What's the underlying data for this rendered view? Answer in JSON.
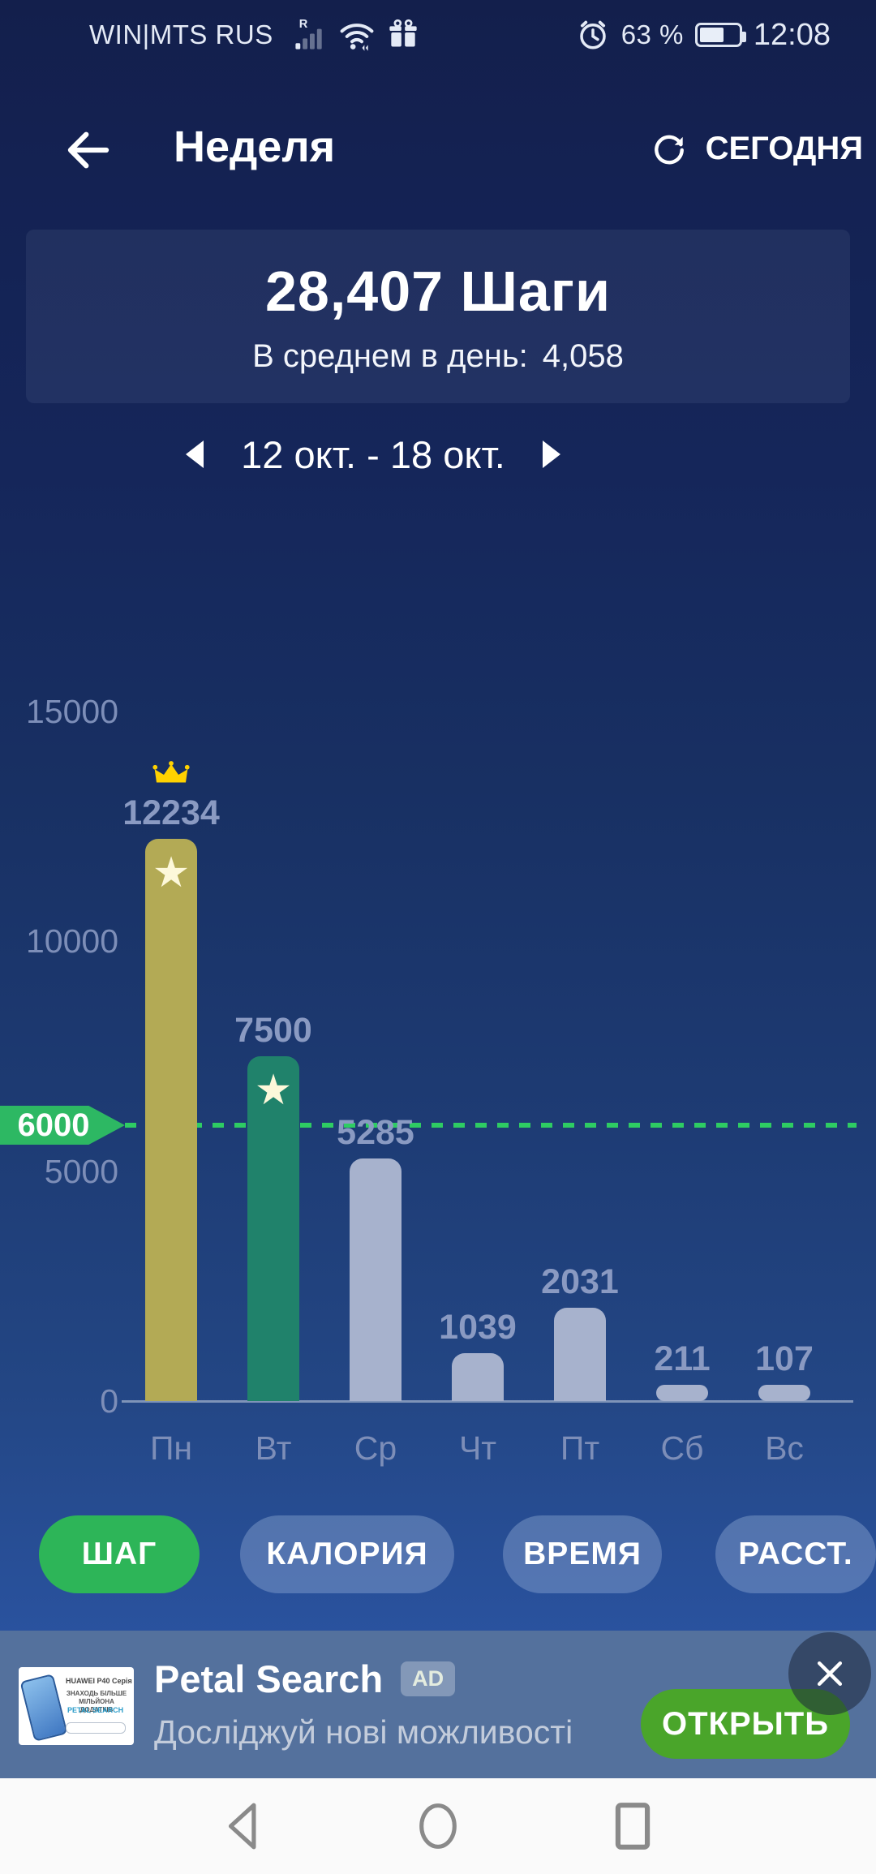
{
  "status_bar": {
    "carrier": "WIN|MTS RUS",
    "battery_percent": "63 %",
    "battery_level": 0.63,
    "time": "12:08",
    "icons": [
      "roaming-signal-icon",
      "wifi-icon",
      "gift-icon",
      "alarm-icon",
      "battery-icon"
    ]
  },
  "header": {
    "title": "Неделя",
    "today_button": "СЕГОДНЯ"
  },
  "summary": {
    "total_steps": "28,407 Шаги",
    "average_label": "В среднем в день:",
    "average_value": "4,058"
  },
  "date_selector": {
    "range": "12 окт. - 18 окт."
  },
  "chart_data": {
    "type": "bar",
    "title": "",
    "xlabel": "",
    "ylabel": "",
    "categories": [
      "Пн",
      "Вт",
      "Ср",
      "Чт",
      "Пт",
      "Сб",
      "Вс"
    ],
    "values": [
      12234,
      7500,
      5285,
      1039,
      2031,
      211,
      107
    ],
    "bar_colors": [
      "#b3aa55",
      "#20826b",
      "#a7b2cd",
      "#a7b2cd",
      "#a7b2cd",
      "#a7b2cd",
      "#a7b2cd"
    ],
    "yticks": [
      0,
      5000,
      10000,
      15000
    ],
    "ylim": [
      0,
      15000
    ],
    "grid": false,
    "legend": "none",
    "goal": {
      "value": 6000,
      "label": "6000",
      "color": "#2db863"
    },
    "best_day_index": 0,
    "starred_days": [
      0,
      1
    ],
    "value_label_color": "#8a9ac2"
  },
  "tabs": [
    {
      "label": "ШАГ",
      "active": true
    },
    {
      "label": "КАЛОРИЯ",
      "active": false
    },
    {
      "label": "ВРЕМЯ",
      "active": false
    },
    {
      "label": "РАССТ.",
      "active": false
    }
  ],
  "ad_banner": {
    "title": "Petal Search",
    "ad_badge": "AD",
    "subtitle": "Досліджуй нові можливості",
    "cta": "ОТКРЫТЬ",
    "thumbnail": {
      "brand_line": "HUAWEI P40 Серія",
      "tagline": "ЗНАХОДЬ БІЛЬШЕ МІЛЬЙОНА ДОДАТКІВ",
      "logo_line": "PETAL SEARCH"
    }
  },
  "colors": {
    "accent_tab_green": "#2db558",
    "goal_green": "#2db863",
    "cta_green": "#4aa52a",
    "gold_bar": "#b3aa55",
    "teal_bar": "#20826b",
    "light_bar": "#a7b2cd",
    "crown_gold": "#ffd200",
    "banner_bg": "#54719d"
  }
}
